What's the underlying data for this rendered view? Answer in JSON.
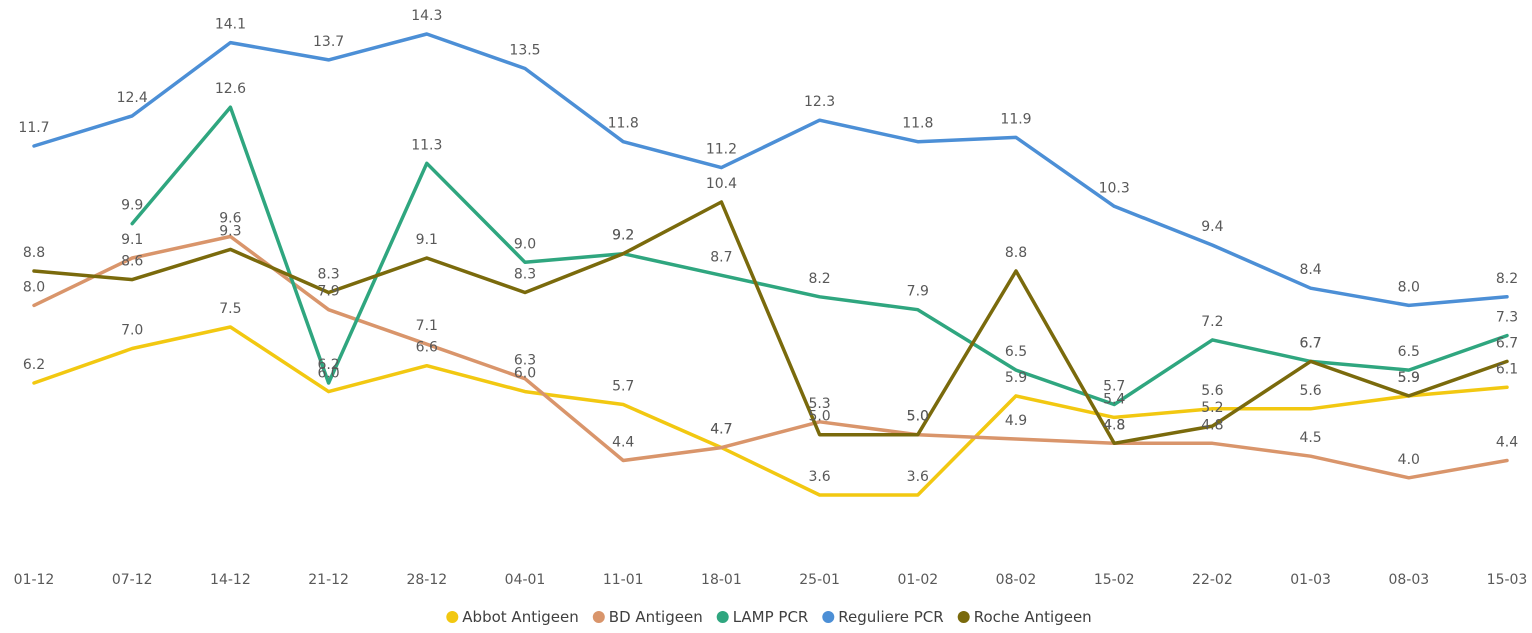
{
  "chart_data": {
    "type": "line",
    "categories": [
      "01-12",
      "07-12",
      "14-12",
      "21-12",
      "28-12",
      "04-01",
      "11-01",
      "18-01",
      "25-01",
      "01-02",
      "08-02",
      "15-02",
      "22-02",
      "01-03",
      "08-03",
      "15-03"
    ],
    "series": [
      {
        "name": "Abbot Antigeen",
        "color": "#F2C811",
        "values": [
          6.2,
          7.0,
          7.5,
          6.0,
          6.6,
          6.0,
          5.7,
          4.7,
          3.6,
          3.6,
          5.9,
          5.4,
          5.6,
          5.6,
          5.9,
          6.1
        ]
      },
      {
        "name": "BD Antigeen",
        "color": "#D9956B",
        "values": [
          8.0,
          9.1,
          9.6,
          7.9,
          7.1,
          6.3,
          4.4,
          4.7,
          5.3,
          5.0,
          4.9,
          4.8,
          4.8,
          4.5,
          4.0,
          4.4
        ]
      },
      {
        "name": "LAMP PCR",
        "color": "#2FA67F",
        "values": [
          null,
          9.9,
          12.6,
          6.2,
          11.3,
          9.0,
          9.2,
          8.7,
          8.2,
          7.9,
          6.5,
          5.7,
          7.2,
          6.7,
          6.5,
          7.3
        ]
      },
      {
        "name": "Reguliere PCR",
        "color": "#4C8FD6",
        "values": [
          11.7,
          12.4,
          14.1,
          13.7,
          14.3,
          13.5,
          11.8,
          11.2,
          12.3,
          11.8,
          11.9,
          10.3,
          9.4,
          8.4,
          8.0,
          8.2
        ]
      },
      {
        "name": "Roche Antigeen",
        "color": "#7A6A0C",
        "values": [
          8.8,
          8.6,
          9.3,
          8.3,
          9.1,
          8.3,
          9.2,
          10.4,
          5.0,
          5.0,
          8.8,
          4.8,
          5.2,
          6.7,
          5.9,
          6.7
        ]
      }
    ],
    "legend_position": "bottom",
    "grid": false,
    "ylim": [
      2,
      14.7
    ]
  }
}
